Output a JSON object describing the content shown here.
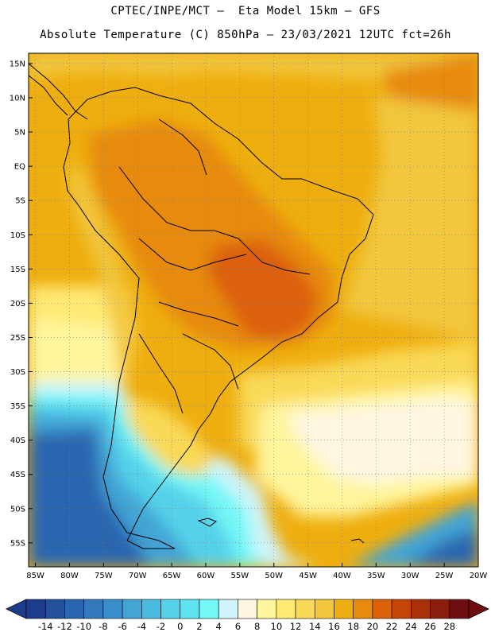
{
  "header": {
    "line1": "CPTEC/INPE/MCT –  Eta Model 15km – GFS",
    "line2": "Absolute Temperature (C) 850hPa – 23/03/2021 12UTC fct=26h"
  },
  "map": {
    "lat_labels": [
      "15N",
      "10N",
      "5N",
      "EQ",
      "5S",
      "10S",
      "15S",
      "20S",
      "25S",
      "30S",
      "35S",
      "40S",
      "45S",
      "50S",
      "55S"
    ],
    "lon_labels": [
      "85W",
      "80W",
      "75W",
      "70W",
      "65W",
      "60W",
      "55W",
      "50W",
      "45W",
      "40W",
      "35W",
      "30W",
      "25W",
      "20W"
    ],
    "lat_values": [
      15,
      10,
      5,
      0,
      -5,
      -10,
      -15,
      -20,
      -25,
      -30,
      -35,
      -40,
      -45,
      -50,
      -55
    ],
    "lon_values": [
      -85,
      -80,
      -75,
      -70,
      -65,
      -60,
      -55,
      -50,
      -45,
      -40,
      -35,
      -30,
      -25,
      -20
    ],
    "extent": {
      "lon_min": -86,
      "lon_max": -20,
      "lat_min": -58.5,
      "lat_max": 16.5
    }
  },
  "colorbar": {
    "labels": [
      "-14",
      "-12",
      "-10",
      "-8",
      "-6",
      "-4",
      "-2",
      "0",
      "2",
      "4",
      "6",
      "8",
      "10",
      "12",
      "14",
      "16",
      "18",
      "20",
      "22",
      "24",
      "26",
      "28"
    ],
    "colors": [
      "#1e3c8c",
      "#23519e",
      "#2a66b0",
      "#3479be",
      "#3a8ecb",
      "#43a4d6",
      "#4bbbe0",
      "#54d2ea",
      "#5de4f0",
      "#73f7f7",
      "#cff4fb",
      "#fff6e2",
      "#fff59b",
      "#ffe973",
      "#f9d957",
      "#f2c63d",
      "#eeae0f",
      "#e78a0e",
      "#dc6108",
      "#c54407",
      "#a8310a",
      "#8b1f0d",
      "#6e0e12"
    ]
  }
}
